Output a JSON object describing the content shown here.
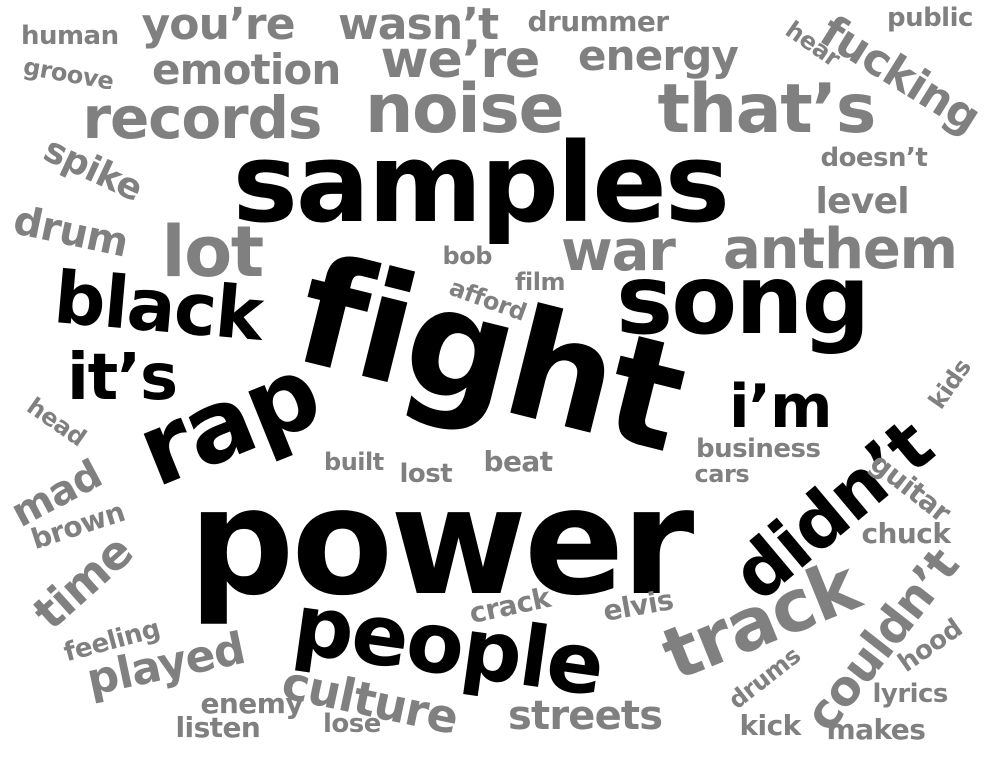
{
  "colors": {
    "primary": "#000000",
    "secondary": "#808080",
    "background": "#ffffff"
  },
  "words": [
    {
      "text": "power",
      "tier": "primary"
    },
    {
      "text": "fight",
      "tier": "primary"
    },
    {
      "text": "samples",
      "tier": "primary"
    },
    {
      "text": "song",
      "tier": "primary"
    },
    {
      "text": "rap",
      "tier": "primary"
    },
    {
      "text": "people",
      "tier": "primary"
    },
    {
      "text": "black",
      "tier": "primary"
    },
    {
      "text": "didn’t",
      "tier": "primary"
    },
    {
      "text": "it’s",
      "tier": "primary"
    },
    {
      "text": "i’m",
      "tier": "primary"
    },
    {
      "text": "noise",
      "tier": "secondary"
    },
    {
      "text": "that’s",
      "tier": "secondary"
    },
    {
      "text": "records",
      "tier": "secondary"
    },
    {
      "text": "track",
      "tier": "secondary"
    },
    {
      "text": "lot",
      "tier": "secondary"
    },
    {
      "text": "war",
      "tier": "secondary"
    },
    {
      "text": "anthem",
      "tier": "secondary"
    },
    {
      "text": "we’re",
      "tier": "secondary"
    },
    {
      "text": "you’re",
      "tier": "secondary"
    },
    {
      "text": "wasn’t",
      "tier": "secondary"
    },
    {
      "text": "emotion",
      "tier": "secondary"
    },
    {
      "text": "energy",
      "tier": "secondary"
    },
    {
      "text": "fucking",
      "tier": "secondary"
    },
    {
      "text": "culture",
      "tier": "secondary"
    },
    {
      "text": "couldn’t",
      "tier": "secondary"
    },
    {
      "text": "time",
      "tier": "secondary"
    },
    {
      "text": "played",
      "tier": "secondary"
    },
    {
      "text": "streets",
      "tier": "secondary"
    },
    {
      "text": "drum",
      "tier": "secondary"
    },
    {
      "text": "spike",
      "tier": "secondary"
    },
    {
      "text": "mad",
      "tier": "secondary"
    },
    {
      "text": "level",
      "tier": "secondary"
    },
    {
      "text": "drummer",
      "tier": "secondary"
    },
    {
      "text": "human",
      "tier": "secondary"
    },
    {
      "text": "groove",
      "tier": "secondary"
    },
    {
      "text": "public",
      "tier": "secondary"
    },
    {
      "text": "hear",
      "tier": "secondary"
    },
    {
      "text": "doesn’t",
      "tier": "secondary"
    },
    {
      "text": "bob",
      "tier": "secondary"
    },
    {
      "text": "afford",
      "tier": "secondary"
    },
    {
      "text": "film",
      "tier": "secondary"
    },
    {
      "text": "head",
      "tier": "secondary"
    },
    {
      "text": "kids",
      "tier": "secondary"
    },
    {
      "text": "business",
      "tier": "secondary"
    },
    {
      "text": "cars",
      "tier": "secondary"
    },
    {
      "text": "built",
      "tier": "secondary"
    },
    {
      "text": "lost",
      "tier": "secondary"
    },
    {
      "text": "beat",
      "tier": "secondary"
    },
    {
      "text": "guitar",
      "tier": "secondary"
    },
    {
      "text": "brown",
      "tier": "secondary"
    },
    {
      "text": "chuck",
      "tier": "secondary"
    },
    {
      "text": "crack",
      "tier": "secondary"
    },
    {
      "text": "elvis",
      "tier": "secondary"
    },
    {
      "text": "feeling",
      "tier": "secondary"
    },
    {
      "text": "hood",
      "tier": "secondary"
    },
    {
      "text": "drums",
      "tier": "secondary"
    },
    {
      "text": "enemy",
      "tier": "secondary"
    },
    {
      "text": "lyrics",
      "tier": "secondary"
    },
    {
      "text": "listen",
      "tier": "secondary"
    },
    {
      "text": "lose",
      "tier": "secondary"
    },
    {
      "text": "kick",
      "tier": "secondary"
    },
    {
      "text": "makes",
      "tier": "secondary"
    }
  ]
}
